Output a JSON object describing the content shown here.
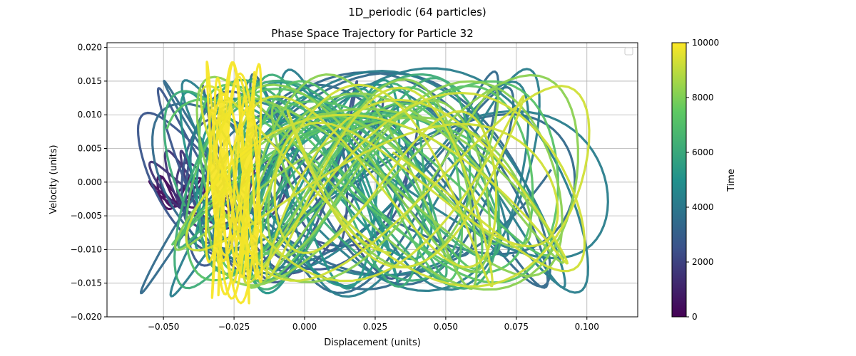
{
  "figure": {
    "suptitle": "1D_periodic (64 particles)"
  },
  "chart_data": {
    "type": "scatter",
    "title": "Phase Space Trajectory for Particle 32",
    "xlabel": "Displacement (units)",
    "ylabel": "Velocity (units)",
    "xlim": [
      -0.07,
      0.118
    ],
    "ylim": [
      -0.02,
      0.0207
    ],
    "xticks": [
      -0.05,
      -0.025,
      0.0,
      0.025,
      0.05,
      0.075,
      0.1
    ],
    "xtick_labels": [
      "−0.050",
      "−0.025",
      "0.000",
      "0.025",
      "0.050",
      "0.075",
      "0.100"
    ],
    "yticks": [
      -0.02,
      -0.015,
      -0.01,
      -0.005,
      0.0,
      0.005,
      0.01,
      0.015,
      0.02
    ],
    "ytick_labels": [
      "−0.020",
      "−0.015",
      "−0.010",
      "−0.005",
      "0.000",
      "0.005",
      "0.010",
      "0.015",
      "0.020"
    ],
    "grid": true,
    "legend": "top-right",
    "colorbar": {
      "label": "Time",
      "range": [
        0,
        10000
      ],
      "ticks": [
        0,
        2000,
        4000,
        6000,
        8000,
        10000
      ],
      "tick_labels": [
        "0",
        "2000",
        "4000",
        "6000",
        "8000",
        "10000"
      ],
      "colormap": [
        "#440154",
        "#3b528b",
        "#21918c",
        "#5ec962",
        "#fde725"
      ]
    },
    "series": [
      {
        "t": 300,
        "cx": -0.045,
        "w": 0.01,
        "h": 0.0025,
        "cy": -0.0015,
        "loops": 3
      },
      {
        "t": 1500,
        "cx": -0.03,
        "w": 0.025,
        "h": 0.006,
        "cy": -0.001,
        "loops": 4
      },
      {
        "t": 2600,
        "cx": -0.01,
        "w": 0.05,
        "h": 0.015,
        "cy": 0.0,
        "loops": 5
      },
      {
        "t": 3400,
        "cx": 0.02,
        "w": 0.078,
        "h": 0.0165,
        "cy": 0.0,
        "loops": 6
      },
      {
        "t": 4200,
        "cx": 0.03,
        "w": 0.078,
        "h": 0.017,
        "cy": 0.0,
        "loops": 6
      },
      {
        "t": 5200,
        "cx": 0.0,
        "w": 0.045,
        "h": 0.016,
        "cy": -0.0005,
        "loops": 5
      },
      {
        "t": 6200,
        "cx": 0.01,
        "w": 0.06,
        "h": 0.016,
        "cy": 0.0,
        "loops": 6
      },
      {
        "t": 7200,
        "cx": 0.02,
        "w": 0.07,
        "h": 0.015,
        "cy": 0.0,
        "loops": 6
      },
      {
        "t": 8200,
        "cx": 0.025,
        "w": 0.072,
        "h": 0.016,
        "cy": 0.0,
        "loops": 7
      },
      {
        "t": 9300,
        "cx": 0.03,
        "w": 0.072,
        "h": 0.015,
        "cy": -0.0005,
        "loops": 7
      },
      {
        "t": 9900,
        "cx": -0.025,
        "w": 0.01,
        "h": 0.018,
        "cy": 0.0,
        "loops": 8
      }
    ]
  }
}
